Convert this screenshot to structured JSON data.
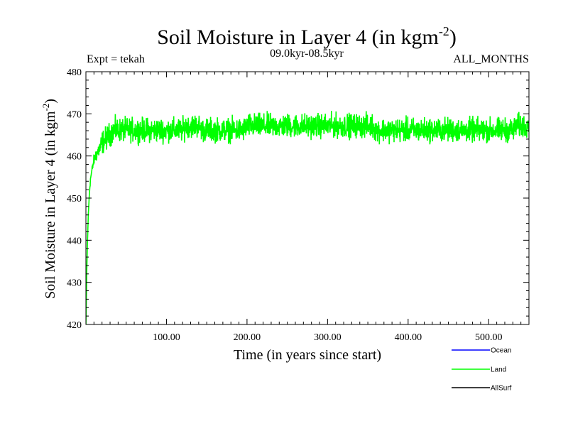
{
  "chart_data": {
    "type": "line",
    "title": "Soil Moisture in Layer 4 (in kgm",
    "title_sup": "-2",
    "title_end": ")",
    "subtitle_left": "Expt = tekah",
    "subtitle_center": "09.0kyr-08.5kyr",
    "subtitle_right": "ALL_MONTHS",
    "xlabel": "Time (in years since start)",
    "ylabel": "Soil Moisture in Layer 4 (in kgm",
    "ylabel_sup": "-2",
    "ylabel_end": ")",
    "xlim": [
      0,
      550
    ],
    "ylim": [
      420,
      480
    ],
    "x_ticks": [
      {
        "v": 100,
        "label": "100.00"
      },
      {
        "v": 200,
        "label": "200.00"
      },
      {
        "v": 300,
        "label": "300.00"
      },
      {
        "v": 400,
        "label": "400.00"
      },
      {
        "v": 500,
        "label": "500.00"
      }
    ],
    "y_ticks": [
      {
        "v": 420,
        "label": "420"
      },
      {
        "v": 430,
        "label": "430"
      },
      {
        "v": 440,
        "label": "440"
      },
      {
        "v": 450,
        "label": "450"
      },
      {
        "v": 460,
        "label": "460"
      },
      {
        "v": 470,
        "label": "470"
      },
      {
        "v": 480,
        "label": "480"
      }
    ],
    "grid": false,
    "legend_position": "bottom-right",
    "series": [
      {
        "name": "Ocean",
        "color": "#0000ff",
        "x": [],
        "y": []
      },
      {
        "name": "Land",
        "color": "#00ff00",
        "x": [
          0,
          1,
          2,
          3,
          4,
          5,
          6,
          8,
          10,
          12,
          15,
          18,
          20,
          25,
          30,
          35,
          40,
          45,
          50,
          55,
          60,
          65,
          70,
          75,
          80,
          85,
          90,
          95,
          100,
          105,
          110,
          115,
          120,
          125,
          130,
          135,
          140,
          145,
          150,
          155,
          160,
          165,
          170,
          175,
          180,
          185,
          190,
          195,
          200,
          205,
          210,
          215,
          220,
          225,
          230,
          235,
          240,
          245,
          250,
          255,
          260,
          265,
          270,
          275,
          280,
          285,
          290,
          295,
          300,
          305,
          310,
          315,
          320,
          325,
          330,
          335,
          340,
          345,
          350,
          355,
          360,
          365,
          370,
          375,
          380,
          385,
          390,
          395,
          400,
          405,
          410,
          415,
          420,
          425,
          430,
          435,
          440,
          445,
          450,
          455,
          460,
          465,
          470,
          475,
          480,
          485,
          490,
          495,
          500,
          505,
          510,
          515,
          520,
          525,
          530,
          535,
          540,
          545,
          550
        ],
        "y": [
          420,
          432,
          440,
          446,
          450,
          453,
          455,
          457,
          459,
          460,
          461,
          462,
          463,
          464,
          465,
          466,
          466,
          466,
          466,
          466,
          466,
          466,
          466,
          466,
          466,
          466,
          466,
          466,
          466,
          466,
          466,
          466,
          466,
          467,
          467,
          467,
          467,
          466,
          466,
          466,
          466,
          466,
          466,
          466,
          466,
          466,
          466,
          466,
          467,
          467,
          467,
          467,
          467,
          467,
          467,
          467,
          467,
          467,
          467,
          467,
          467,
          467,
          467,
          467,
          467,
          467,
          467,
          467,
          467,
          467,
          467,
          467,
          467,
          467,
          467,
          467,
          467,
          467,
          467,
          467,
          466,
          466,
          466,
          466,
          466,
          466,
          466,
          466,
          466,
          466,
          466,
          466,
          466,
          466,
          466,
          466,
          466,
          466,
          466,
          466,
          466,
          466,
          466,
          466,
          466,
          466,
          466,
          466,
          466,
          466,
          466,
          466,
          466,
          466,
          466,
          467,
          467,
          467,
          468
        ],
        "noise_range": [
          -7,
          8
        ]
      },
      {
        "name": "AllSurf",
        "color": "#000000",
        "x": [],
        "y": []
      }
    ]
  }
}
